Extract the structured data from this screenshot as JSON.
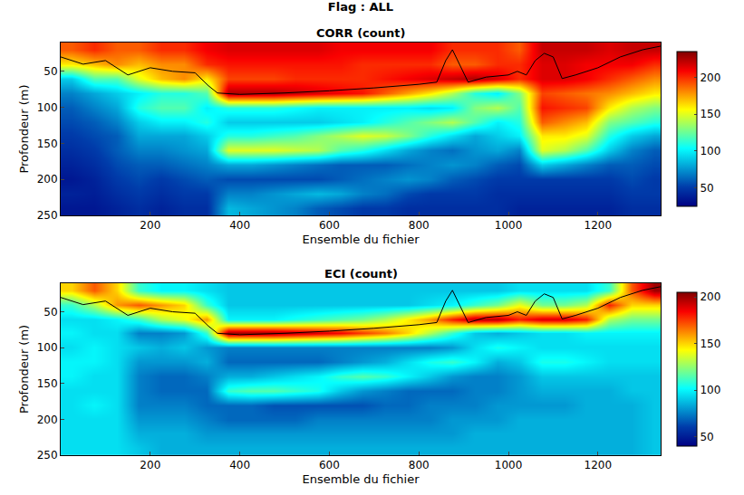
{
  "title": "Flag : ALL",
  "chart_data": [
    {
      "type": "heatmap",
      "title": "CORR (count)",
      "x_label": "Ensemble du fichier",
      "y_label": "Profondeur (m)",
      "color": "jet",
      "xlim": [
        0,
        1340
      ],
      "xticks": [
        200,
        400,
        600,
        800,
        1000,
        1200
      ],
      "ylim": [
        250,
        10
      ],
      "yticks": [
        50,
        100,
        150,
        200,
        250
      ],
      "zlim": [
        25,
        235
      ],
      "zticks": [
        50,
        100,
        150,
        200
      ],
      "x": [
        25,
        75,
        125,
        175,
        225,
        275,
        325,
        375,
        425,
        475,
        525,
        575,
        625,
        675,
        725,
        775,
        825,
        875,
        925,
        975,
        1025,
        1075,
        1125,
        1175,
        1225,
        1275,
        1325
      ],
      "y": [
        20,
        40,
        60,
        80,
        100,
        120,
        140,
        160,
        180,
        200,
        220,
        240
      ],
      "z": [
        [
          190,
          160,
          90,
          70,
          60,
          55,
          50,
          45,
          40,
          35,
          40,
          35
        ],
        [
          200,
          170,
          120,
          80,
          70,
          60,
          55,
          50,
          45,
          40,
          38,
          35
        ],
        [
          190,
          180,
          120,
          90,
          80,
          70,
          60,
          60,
          55,
          50,
          45,
          40
        ],
        [
          190,
          170,
          150,
          100,
          110,
          90,
          80,
          70,
          60,
          55,
          50,
          45
        ],
        [
          200,
          180,
          170,
          110,
          120,
          100,
          80,
          70,
          60,
          50,
          45,
          40
        ],
        [
          200,
          180,
          180,
          110,
          120,
          100,
          80,
          75,
          65,
          55,
          50,
          45
        ],
        [
          210,
          200,
          160,
          120,
          100,
          110,
          90,
          80,
          70,
          60,
          50,
          45
        ],
        [
          215,
          205,
          195,
          225,
          110,
          90,
          110,
          150,
          80,
          55,
          70,
          85
        ],
        [
          215,
          205,
          195,
          225,
          110,
          90,
          110,
          150,
          80,
          55,
          70,
          80
        ],
        [
          215,
          205,
          195,
          225,
          110,
          90,
          115,
          150,
          75,
          55,
          75,
          75
        ],
        [
          215,
          205,
          200,
          220,
          105,
          90,
          120,
          145,
          70,
          55,
          80,
          70
        ],
        [
          215,
          205,
          200,
          215,
          100,
          90,
          130,
          140,
          65,
          55,
          85,
          60
        ],
        [
          210,
          205,
          200,
          210,
          100,
          95,
          140,
          120,
          60,
          60,
          80,
          55
        ],
        [
          210,
          200,
          200,
          205,
          100,
          100,
          150,
          110,
          60,
          65,
          70,
          50
        ],
        [
          210,
          200,
          205,
          190,
          100,
          110,
          145,
          95,
          60,
          70,
          65,
          50
        ],
        [
          210,
          200,
          210,
          175,
          100,
          120,
          130,
          80,
          65,
          75,
          55,
          45
        ],
        [
          210,
          200,
          215,
          160,
          95,
          130,
          110,
          70,
          70,
          70,
          50,
          45
        ],
        [
          200,
          190,
          220,
          140,
          100,
          140,
          95,
          65,
          75,
          60,
          50,
          45
        ],
        [
          200,
          190,
          225,
          110,
          130,
          120,
          80,
          75,
          70,
          55,
          50,
          45
        ],
        [
          200,
          200,
          215,
          100,
          140,
          100,
          90,
          80,
          60,
          50,
          45,
          45
        ],
        [
          190,
          200,
          200,
          130,
          120,
          110,
          100,
          70,
          55,
          50,
          45,
          40
        ],
        [
          220,
          215,
          215,
          195,
          205,
          190,
          160,
          150,
          90,
          50,
          45,
          40
        ],
        [
          220,
          215,
          215,
          190,
          200,
          180,
          160,
          140,
          80,
          50,
          45,
          40
        ],
        [
          220,
          210,
          210,
          185,
          195,
          170,
          150,
          120,
          70,
          50,
          45,
          40
        ],
        [
          215,
          210,
          200,
          180,
          160,
          130,
          110,
          90,
          60,
          50,
          45,
          40
        ],
        [
          220,
          210,
          190,
          170,
          140,
          120,
          90,
          70,
          60,
          55,
          50,
          45
        ],
        [
          220,
          200,
          180,
          160,
          130,
          110,
          80,
          60,
          55,
          50,
          50,
          45
        ]
      ],
      "series": [
        {
          "type": "line",
          "color": "#000000",
          "x": [
            0,
            50,
            100,
            150,
            200,
            250,
            300,
            330,
            350,
            400,
            500,
            600,
            700,
            800,
            840,
            860,
            875,
            890,
            910,
            950,
            1000,
            1020,
            1040,
            1060,
            1080,
            1100,
            1120,
            1150,
            1200,
            1250,
            1300,
            1340
          ],
          "values": [
            30,
            40,
            35,
            55,
            45,
            50,
            52,
            70,
            80,
            82,
            80,
            77,
            73,
            68,
            65,
            35,
            20,
            40,
            65,
            58,
            55,
            50,
            55,
            35,
            25,
            30,
            60,
            55,
            45,
            30,
            20,
            15
          ]
        }
      ]
    },
    {
      "type": "heatmap",
      "title": "ECI (count)",
      "x_label": "Ensemble du fichier",
      "y_label": "Profondeur (m)",
      "color": "jet",
      "xlim": [
        0,
        1340
      ],
      "xticks": [
        200,
        400,
        600,
        800,
        1000,
        1200
      ],
      "ylim": [
        250,
        10
      ],
      "yticks": [
        50,
        100,
        150,
        200,
        250
      ],
      "zlim": [
        40,
        205
      ],
      "zticks": [
        50,
        100,
        150,
        200
      ],
      "x": [
        25,
        75,
        125,
        175,
        225,
        275,
        325,
        375,
        425,
        475,
        525,
        575,
        625,
        675,
        725,
        775,
        825,
        875,
        925,
        975,
        1025,
        1075,
        1125,
        1175,
        1225,
        1275,
        1325
      ],
      "y": [
        20,
        40,
        60,
        80,
        100,
        120,
        140,
        160,
        180,
        200,
        220,
        240
      ],
      "z": [
        [
          150,
          110,
          95,
          100,
          95,
          100,
          100,
          95,
          95,
          95,
          95,
          95
        ],
        [
          170,
          130,
          95,
          95,
          100,
          100,
          95,
          95,
          100,
          95,
          95,
          95
        ],
        [
          150,
          160,
          100,
          95,
          95,
          95,
          95,
          95,
          95,
          95,
          95,
          95
        ],
        [
          110,
          170,
          110,
          75,
          90,
          80,
          75,
          75,
          75,
          80,
          85,
          90
        ],
        [
          100,
          160,
          130,
          75,
          85,
          80,
          70,
          70,
          75,
          80,
          85,
          85
        ],
        [
          100,
          150,
          140,
          80,
          90,
          80,
          70,
          70,
          75,
          80,
          85,
          85
        ],
        [
          95,
          110,
          160,
          110,
          80,
          85,
          75,
          70,
          70,
          75,
          80,
          85
        ],
        [
          90,
          90,
          100,
          200,
          75,
          70,
          85,
          110,
          70,
          70,
          80,
          85
        ],
        [
          90,
          90,
          100,
          200,
          75,
          70,
          85,
          115,
          70,
          70,
          80,
          85
        ],
        [
          90,
          90,
          100,
          200,
          75,
          70,
          90,
          115,
          65,
          70,
          80,
          85
        ],
        [
          90,
          90,
          105,
          195,
          75,
          70,
          95,
          110,
          65,
          70,
          80,
          85
        ],
        [
          90,
          90,
          110,
          190,
          75,
          70,
          100,
          105,
          65,
          75,
          80,
          85
        ],
        [
          90,
          90,
          115,
          185,
          75,
          75,
          110,
          90,
          65,
          75,
          80,
          85
        ],
        [
          90,
          90,
          120,
          175,
          75,
          80,
          115,
          80,
          65,
          75,
          80,
          85
        ],
        [
          90,
          90,
          130,
          165,
          75,
          85,
          110,
          75,
          70,
          75,
          80,
          85
        ],
        [
          90,
          90,
          145,
          150,
          75,
          95,
          100,
          70,
          70,
          75,
          80,
          85
        ],
        [
          90,
          95,
          160,
          130,
          75,
          105,
          90,
          70,
          75,
          75,
          80,
          85
        ],
        [
          90,
          100,
          180,
          110,
          80,
          110,
          80,
          70,
          75,
          80,
          80,
          85
        ],
        [
          90,
          110,
          195,
          90,
          95,
          100,
          75,
          75,
          75,
          80,
          85,
          85
        ],
        [
          90,
          120,
          195,
          85,
          105,
          85,
          75,
          75,
          80,
          80,
          85,
          85
        ],
        [
          95,
          140,
          180,
          90,
          100,
          90,
          80,
          80,
          80,
          85,
          85,
          85
        ],
        [
          95,
          120,
          190,
          95,
          95,
          105,
          90,
          85,
          80,
          85,
          85,
          85
        ],
        [
          95,
          120,
          190,
          95,
          95,
          105,
          90,
          85,
          80,
          85,
          85,
          85
        ],
        [
          95,
          130,
          180,
          100,
          95,
          100,
          90,
          85,
          85,
          85,
          85,
          85
        ],
        [
          110,
          180,
          130,
          100,
          95,
          95,
          90,
          85,
          85,
          85,
          85,
          85
        ],
        [
          170,
          150,
          120,
          100,
          95,
          95,
          90,
          90,
          85,
          85,
          85,
          85
        ],
        [
          200,
          150,
          120,
          100,
          95,
          95,
          90,
          90,
          90,
          90,
          90,
          90
        ]
      ],
      "series": [
        {
          "type": "line",
          "color": "#000000",
          "x": [
            0,
            50,
            100,
            150,
            200,
            250,
            300,
            330,
            350,
            400,
            500,
            600,
            700,
            800,
            840,
            860,
            875,
            890,
            910,
            950,
            1000,
            1020,
            1040,
            1060,
            1080,
            1100,
            1120,
            1150,
            1200,
            1250,
            1300,
            1340
          ],
          "values": [
            30,
            40,
            35,
            55,
            45,
            50,
            52,
            70,
            80,
            82,
            80,
            77,
            73,
            68,
            65,
            35,
            20,
            40,
            65,
            58,
            55,
            50,
            55,
            35,
            25,
            30,
            60,
            55,
            45,
            30,
            20,
            15
          ]
        }
      ]
    }
  ]
}
